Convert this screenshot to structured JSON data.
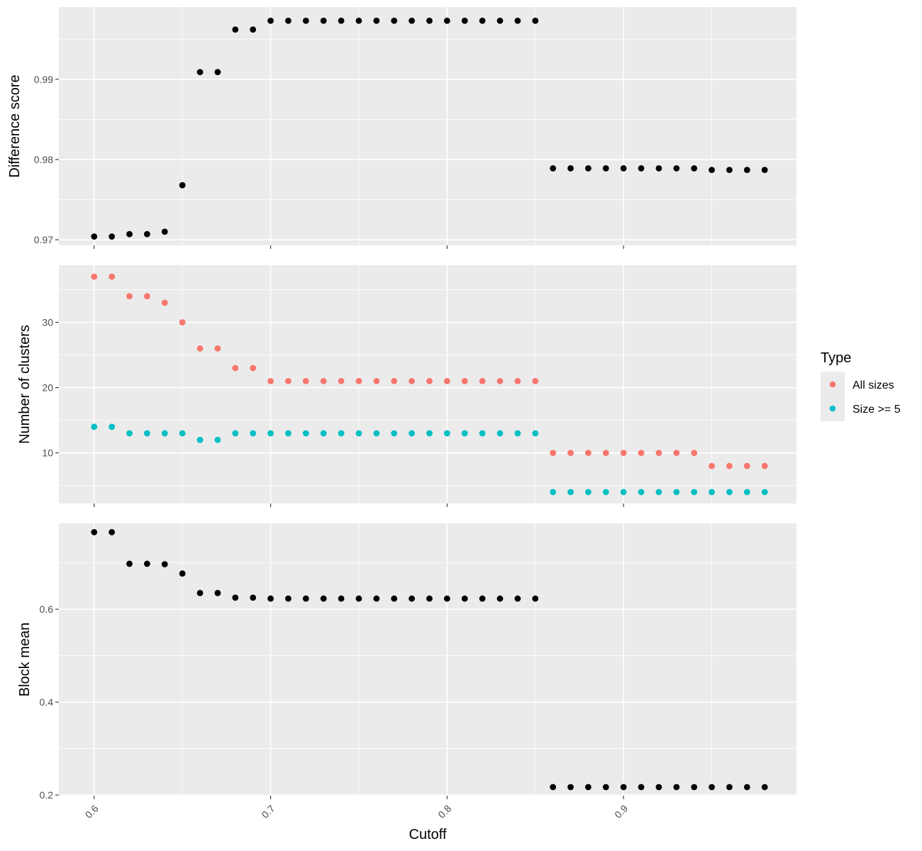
{
  "chart_data": [
    {
      "type": "scatter",
      "title": "",
      "xlabel": "Cutoff",
      "ylabel": "Difference score",
      "xlim": [
        0.58,
        0.998
      ],
      "ylim": [
        0.9693,
        0.999
      ],
      "yticks": [
        0.97,
        0.98,
        0.99
      ],
      "ytick_labels": [
        "0.97",
        "0.98",
        "0.99"
      ],
      "series": [
        {
          "color": "#000000",
          "x": [
            0.6,
            0.61,
            0.62,
            0.63,
            0.64,
            0.65,
            0.66,
            0.67,
            0.68,
            0.69,
            0.7,
            0.71,
            0.72,
            0.73,
            0.74,
            0.75,
            0.76,
            0.77,
            0.78,
            0.79,
            0.8,
            0.81,
            0.82,
            0.83,
            0.84,
            0.85,
            0.86,
            0.87,
            0.88,
            0.89,
            0.9,
            0.91,
            0.92,
            0.93,
            0.94,
            0.95,
            0.96,
            0.97,
            0.98
          ],
          "y": [
            0.9704,
            0.9704,
            0.9707,
            0.9707,
            0.971,
            0.9768,
            0.9909,
            0.9909,
            0.9962,
            0.9962,
            0.9973,
            0.9973,
            0.9973,
            0.9973,
            0.9973,
            0.9973,
            0.9973,
            0.9973,
            0.9973,
            0.9973,
            0.9973,
            0.9973,
            0.9973,
            0.9973,
            0.9973,
            0.9973,
            0.9789,
            0.9789,
            0.9789,
            0.9789,
            0.9789,
            0.9789,
            0.9789,
            0.9789,
            0.9789,
            0.9787,
            0.9787,
            0.9787,
            0.9787
          ]
        }
      ]
    },
    {
      "type": "scatter",
      "title": "",
      "xlabel": "Cutoff",
      "ylabel": "Number of clusters",
      "xlim": [
        0.58,
        0.998
      ],
      "ylim": [
        2.25,
        38.75
      ],
      "yticks": [
        10,
        20,
        30
      ],
      "ytick_labels": [
        "10",
        "20",
        "30"
      ],
      "series": [
        {
          "name": "All sizes",
          "color": "#F8766D",
          "x": [
            0.6,
            0.61,
            0.62,
            0.63,
            0.64,
            0.65,
            0.66,
            0.67,
            0.68,
            0.69,
            0.7,
            0.71,
            0.72,
            0.73,
            0.74,
            0.75,
            0.76,
            0.77,
            0.78,
            0.79,
            0.8,
            0.81,
            0.82,
            0.83,
            0.84,
            0.85,
            0.86,
            0.87,
            0.88,
            0.89,
            0.9,
            0.91,
            0.92,
            0.93,
            0.94,
            0.95,
            0.96,
            0.97,
            0.98
          ],
          "y": [
            37,
            37,
            34,
            34,
            33,
            30,
            26,
            26,
            23,
            23,
            21,
            21,
            21,
            21,
            21,
            21,
            21,
            21,
            21,
            21,
            21,
            21,
            21,
            21,
            21,
            21,
            10,
            10,
            10,
            10,
            10,
            10,
            10,
            10,
            10,
            8,
            8,
            8,
            8
          ]
        },
        {
          "name": "Size >= 5",
          "color": "#00BFC4",
          "x": [
            0.6,
            0.61,
            0.62,
            0.63,
            0.64,
            0.65,
            0.66,
            0.67,
            0.68,
            0.69,
            0.7,
            0.71,
            0.72,
            0.73,
            0.74,
            0.75,
            0.76,
            0.77,
            0.78,
            0.79,
            0.8,
            0.81,
            0.82,
            0.83,
            0.84,
            0.85,
            0.86,
            0.87,
            0.88,
            0.89,
            0.9,
            0.91,
            0.92,
            0.93,
            0.94,
            0.95,
            0.96,
            0.97,
            0.98
          ],
          "y": [
            14,
            14,
            13,
            13,
            13,
            13,
            12,
            12,
            13,
            13,
            13,
            13,
            13,
            13,
            13,
            13,
            13,
            13,
            13,
            13,
            13,
            13,
            13,
            13,
            13,
            13,
            4,
            4,
            4,
            4,
            4,
            4,
            4,
            4,
            4,
            4,
            4,
            4,
            4
          ]
        }
      ]
    },
    {
      "type": "scatter",
      "title": "",
      "xlabel": "Cutoff",
      "ylabel": "Block mean",
      "xlim": [
        0.58,
        0.998
      ],
      "ylim": [
        0.1985,
        0.785
      ],
      "yticks": [
        0.2,
        0.4,
        0.6
      ],
      "ytick_labels": [
        "0.2",
        "0.4",
        "0.6"
      ],
      "xticks": [
        0.6,
        0.7,
        0.8,
        0.9
      ],
      "xtick_labels": [
        "0.6",
        "0.7",
        "0.8",
        "0.9"
      ],
      "series": [
        {
          "color": "#000000",
          "x": [
            0.6,
            0.61,
            0.62,
            0.63,
            0.64,
            0.65,
            0.66,
            0.67,
            0.68,
            0.69,
            0.7,
            0.71,
            0.72,
            0.73,
            0.74,
            0.75,
            0.76,
            0.77,
            0.78,
            0.79,
            0.8,
            0.81,
            0.82,
            0.83,
            0.84,
            0.85,
            0.86,
            0.87,
            0.88,
            0.89,
            0.9,
            0.91,
            0.92,
            0.93,
            0.94,
            0.95,
            0.96,
            0.97,
            0.98
          ],
          "y": [
            0.766,
            0.766,
            0.698,
            0.698,
            0.697,
            0.677,
            0.635,
            0.635,
            0.625,
            0.625,
            0.623,
            0.623,
            0.623,
            0.623,
            0.623,
            0.623,
            0.623,
            0.623,
            0.623,
            0.623,
            0.623,
            0.623,
            0.623,
            0.623,
            0.623,
            0.623,
            0.217,
            0.217,
            0.217,
            0.217,
            0.217,
            0.217,
            0.217,
            0.217,
            0.217,
            0.217,
            0.217,
            0.217,
            0.217
          ]
        }
      ]
    }
  ],
  "legend": {
    "title": "Type",
    "entries": [
      {
        "label": "All sizes",
        "color": "#F8766D"
      },
      {
        "label": "Size >= 5",
        "color": "#00BFC4"
      }
    ]
  },
  "xlabel": "Cutoff"
}
